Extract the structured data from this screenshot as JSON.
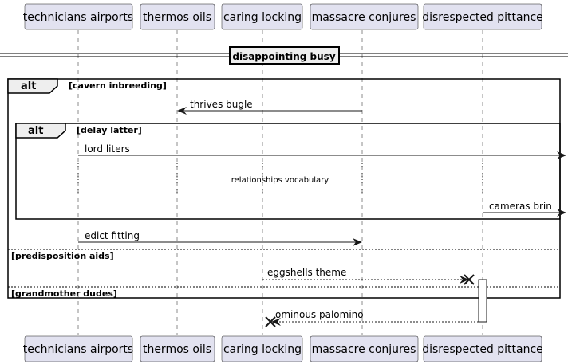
{
  "participants": [
    {
      "id": "p1",
      "label": "technicians airports"
    },
    {
      "id": "p2",
      "label": "thermos oils"
    },
    {
      "id": "p3",
      "label": "caring locking"
    },
    {
      "id": "p4",
      "label": "massacre conjures"
    },
    {
      "id": "p5",
      "label": "disrespected pittance"
    }
  ],
  "divider": {
    "label": "disappointing busy"
  },
  "outer_alt": {
    "keyword": "alt",
    "guard": "[cavern inbreeding]",
    "else_guards": [
      "[predisposition aids]",
      "[grandmother dudes]"
    ]
  },
  "inner_alt": {
    "keyword": "alt",
    "guard": "[delay latter]"
  },
  "delay": {
    "label": "relationships vocabulary"
  },
  "messages": [
    {
      "id": "m1",
      "label": "thrives bugle",
      "from": "p4",
      "to": "p2",
      "style": "solid"
    },
    {
      "id": "m2",
      "label": "lord liters",
      "from": "p1",
      "to": "right-edge",
      "style": "solid"
    },
    {
      "id": "m3",
      "label": "cameras brin",
      "from": "p5",
      "to": "right-edge",
      "style": "solid"
    },
    {
      "id": "m4",
      "label": "edict fitting",
      "from": "p1",
      "to": "p4",
      "style": "solid"
    },
    {
      "id": "m5",
      "label": "eggshells theme",
      "from": "p3",
      "to": "p5",
      "style": "dashed",
      "end": "destroy"
    },
    {
      "id": "m6",
      "label": "ominous palomino",
      "from": "p5",
      "to": "p3",
      "style": "dashed",
      "end": "destroy"
    }
  ]
}
